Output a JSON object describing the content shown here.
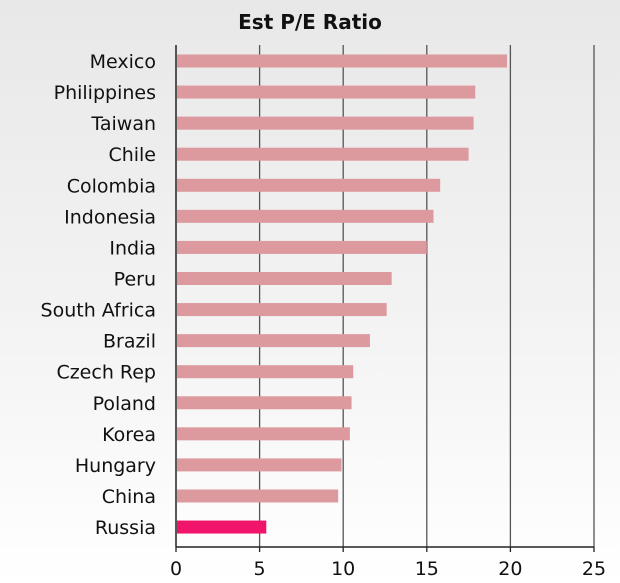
{
  "chart_data": {
    "type": "bar",
    "orientation": "horizontal",
    "title": "Est P/E Ratio",
    "xlabel": "",
    "ylabel": "",
    "categories": [
      "Mexico",
      "Philippines",
      "Taiwan",
      "Chile",
      "Colombia",
      "Indonesia",
      "India",
      "Peru",
      "South Africa",
      "Brazil",
      "Czech Rep",
      "Poland",
      "Korea",
      "Hungary",
      "China",
      "Russia"
    ],
    "values": [
      19.8,
      17.9,
      17.8,
      17.5,
      15.8,
      15.4,
      15.0,
      12.9,
      12.6,
      11.6,
      10.6,
      10.5,
      10.4,
      9.9,
      9.7,
      5.4
    ],
    "xlim": [
      0,
      25
    ],
    "xticks": [
      "0",
      "5",
      "10",
      "15",
      "20",
      "25"
    ],
    "grid": "vertical",
    "legend": "none",
    "colors": {
      "default_bar": "#dd9a9e",
      "highlight_bar": "#f0146a",
      "highlight_category": "Russia",
      "grid": "#555555",
      "axis": "#222222"
    }
  }
}
